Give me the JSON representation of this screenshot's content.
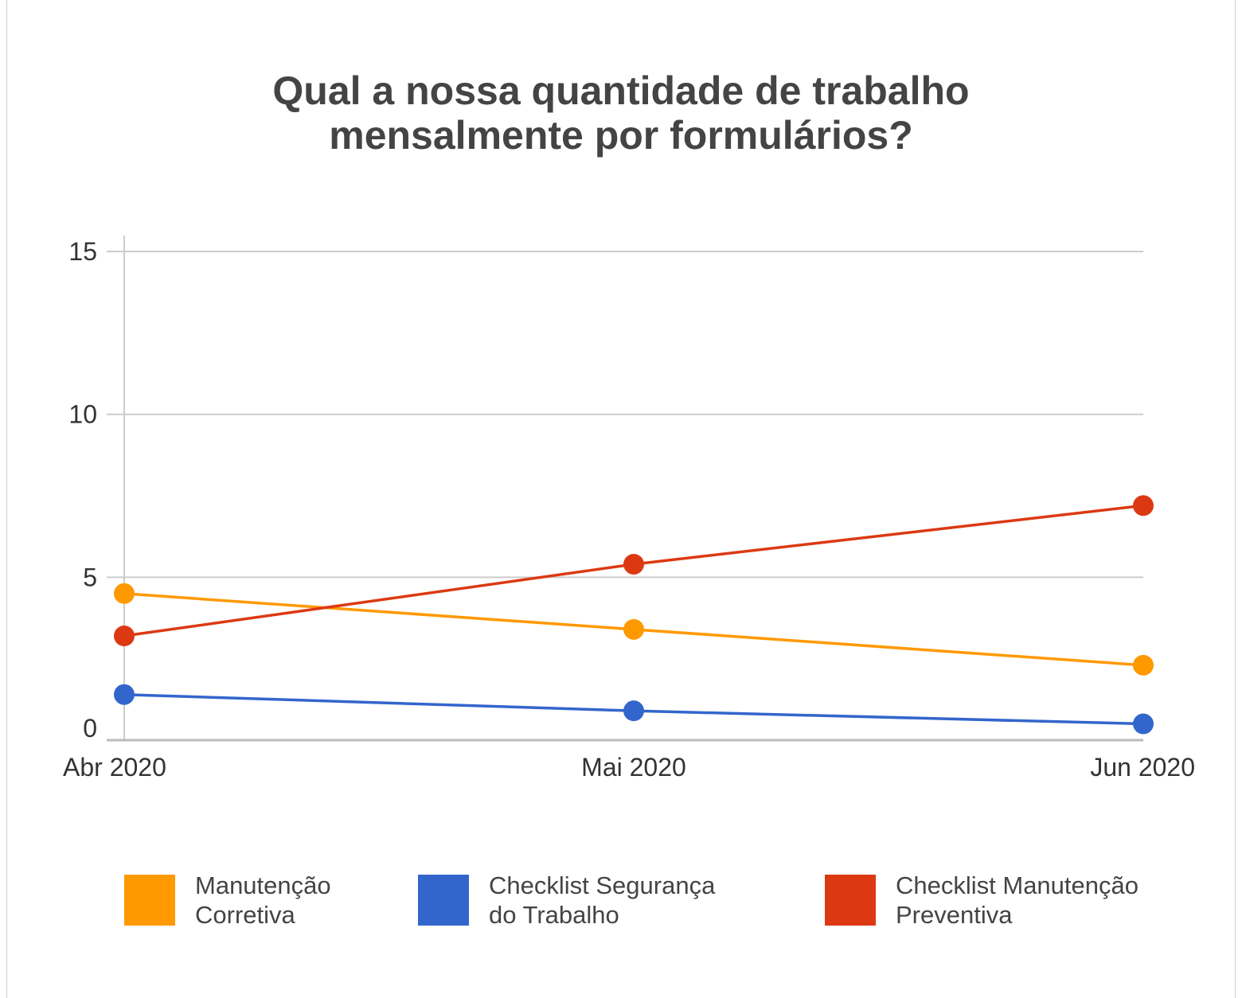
{
  "chart_data": {
    "type": "line",
    "title_lines": [
      "Qual a nossa quantidade de trabalho",
      "mensalmente por formulários?"
    ],
    "categories": [
      "Abr 2020",
      "Mai 2020",
      "Jun 2020"
    ],
    "y_ticks": [
      "0",
      "5",
      "10",
      "15"
    ],
    "ylim": [
      0,
      15
    ],
    "grid": true,
    "legend_position": "bottom",
    "series": [
      {
        "name_lines": [
          "Manutenção",
          "Corretiva"
        ],
        "color": "#ff9900",
        "values": [
          4.5,
          3.4,
          2.3
        ]
      },
      {
        "name_lines": [
          "Checklist Segurança",
          "do Trabalho"
        ],
        "color": "#3366cc",
        "values": [
          1.4,
          0.9,
          0.5
        ]
      },
      {
        "name_lines": [
          "Checklist Manutenção",
          "Preventiva"
        ],
        "color": "#dc3912",
        "values": [
          3.2,
          5.4,
          7.2
        ]
      }
    ]
  }
}
